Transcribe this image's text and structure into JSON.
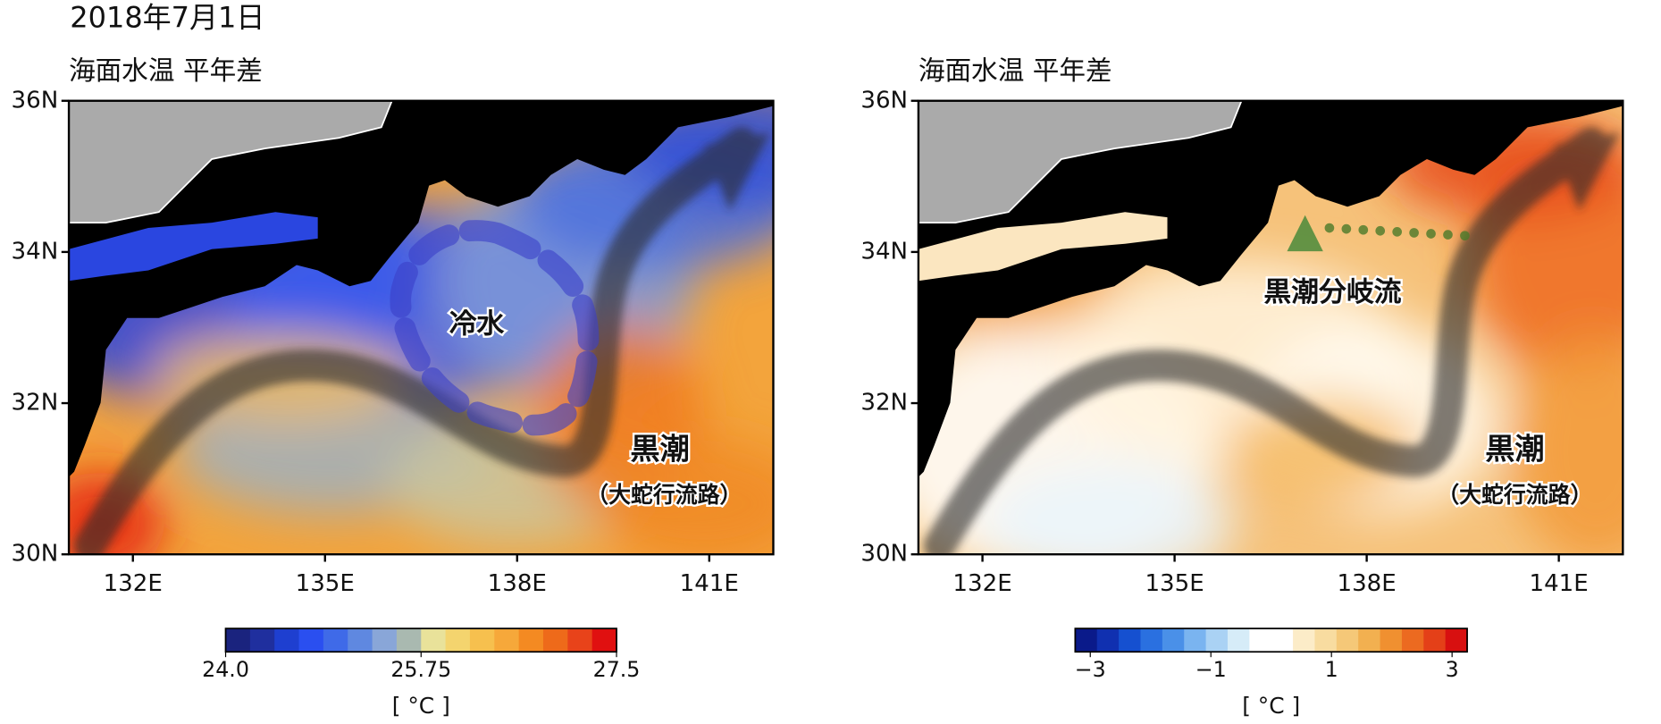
{
  "title": "2018年7月1日",
  "panels": [
    {
      "title": "海面水温 平年差",
      "xlim": [
        131,
        142
      ],
      "ylim": [
        30,
        36
      ],
      "xticks": [
        {
          "value": 132,
          "label": "132E"
        },
        {
          "value": 135,
          "label": "135E"
        },
        {
          "value": 138,
          "label": "138E"
        },
        {
          "value": 141,
          "label": "141E"
        }
      ],
      "yticks": [
        {
          "value": 30,
          "label": "30N"
        },
        {
          "value": 32,
          "label": "32N"
        },
        {
          "value": 34,
          "label": "34N"
        },
        {
          "value": 36,
          "label": "36N"
        }
      ],
      "annotations": [
        {
          "text": "冷水",
          "color": "#2a2ee0"
        },
        {
          "text": "黒潮",
          "color": "#111111"
        },
        {
          "text": "（大蛇行流路）",
          "color": "#111111"
        }
      ],
      "colorbar": {
        "range": [
          24,
          27.5
        ],
        "ticks": [
          {
            "value": 24,
            "label": "24.0"
          },
          25.75,
          27.5
        ],
        "unit": "[ °C ]",
        "colors": [
          "#1a237e",
          "#1f2f9e",
          "#1e3fd0",
          "#2a4ff0",
          "#3f6ae8",
          "#5f88e0",
          "#89a6d8",
          "#a9b9b0",
          "#e9e29a",
          "#f4d46e",
          "#f6c04e",
          "#f6a83a",
          "#f48a22",
          "#ee6a1a",
          "#e8431a",
          "#e01010"
        ]
      }
    },
    {
      "title": "海面水温 平年差",
      "xlim": [
        131,
        142
      ],
      "ylim": [
        30,
        36
      ],
      "xticks": [
        {
          "value": 132,
          "label": "132E"
        },
        {
          "value": 135,
          "label": "135E"
        },
        {
          "value": 138,
          "label": "138E"
        },
        {
          "value": 141,
          "label": "141E"
        }
      ],
      "yticks": [
        {
          "value": 30,
          "label": "30N"
        },
        {
          "value": 32,
          "label": "32N"
        },
        {
          "value": 34,
          "label": "34N"
        },
        {
          "value": 36,
          "label": "36N"
        }
      ],
      "annotations": [
        {
          "text": "黒潮分岐流",
          "color": "#2e7d1e"
        },
        {
          "text": "黒潮",
          "color": "#111111"
        },
        {
          "text": "（大蛇行流路）",
          "color": "#111111"
        }
      ],
      "colorbar": {
        "range": [
          -3.25,
          3.25
        ],
        "ticks": [
          {
            "value": -3,
            "label": "−3"
          },
          {
            "value": -1,
            "label": "−1"
          },
          1,
          3
        ],
        "unit": "[ °C ]",
        "colors": [
          "#0a1a8a",
          "#1030b0",
          "#1550d0",
          "#2a70e0",
          "#4a90e8",
          "#7ab4f0",
          "#aad2f4",
          "#d6ecf8",
          "#ffffff",
          "#ffffff",
          "#fcecc8",
          "#f8dca0",
          "#f5c878",
          "#f2b050",
          "#f09030",
          "#ec6a20",
          "#e44018",
          "#d81010"
        ]
      }
    }
  ]
}
